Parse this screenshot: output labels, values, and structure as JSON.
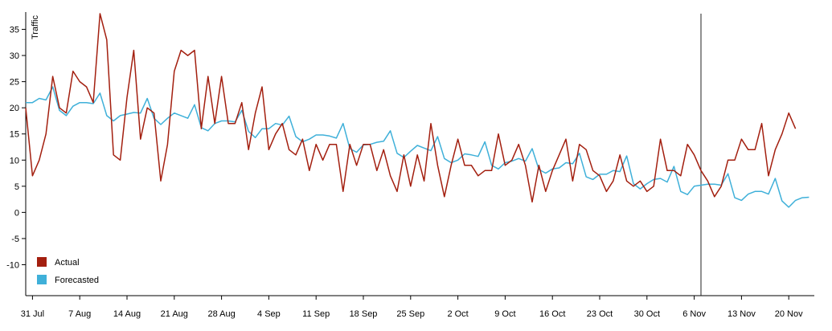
{
  "chart_data": {
    "type": "line",
    "ylabel": "Traffic",
    "ylim": [
      -13,
      38
    ],
    "yticks": [
      -10,
      -5,
      0,
      5,
      10,
      15,
      20,
      25,
      30,
      35
    ],
    "x_start": "2019-07-30",
    "xticks": [
      {
        "label": "31 Jul",
        "date": "2019-07-31"
      },
      {
        "label": "7 Aug",
        "date": "2019-08-07"
      },
      {
        "label": "14 Aug",
        "date": "2019-08-14"
      },
      {
        "label": "21 Aug",
        "date": "2019-08-21"
      },
      {
        "label": "28 Aug",
        "date": "2019-08-28"
      },
      {
        "label": "4 Sep",
        "date": "2019-09-04"
      },
      {
        "label": "11 Sep",
        "date": "2019-09-11"
      },
      {
        "label": "18 Sep",
        "date": "2019-09-18"
      },
      {
        "label": "25 Sep",
        "date": "2019-09-25"
      },
      {
        "label": "2 Oct",
        "date": "2019-10-02"
      },
      {
        "label": "9 Oct",
        "date": "2019-10-09"
      },
      {
        "label": "16 Oct",
        "date": "2019-10-16"
      },
      {
        "label": "23 Oct",
        "date": "2019-10-23"
      },
      {
        "label": "30 Oct",
        "date": "2019-10-30"
      },
      {
        "label": "6 Nov",
        "date": "2019-11-06"
      },
      {
        "label": "13 Nov",
        "date": "2019-11-13"
      },
      {
        "label": "20 Nov",
        "date": "2019-11-20"
      }
    ],
    "marker_date": "2019-11-07",
    "legend_position": "bottom-left",
    "grid": false,
    "series": [
      {
        "name": "Actual",
        "color": "#a31f0f",
        "values": [
          20,
          7,
          10,
          15,
          26,
          20,
          19,
          27,
          25,
          24,
          21,
          38,
          33,
          11,
          10,
          22,
          31,
          14,
          20,
          19,
          6,
          13,
          27,
          31,
          30,
          31,
          16,
          26,
          17,
          26,
          17,
          17,
          21,
          12,
          19,
          24,
          12,
          15,
          17,
          12,
          11,
          14,
          8,
          13,
          10,
          13,
          13,
          4,
          13,
          9,
          13,
          13,
          8,
          12,
          7,
          4,
          11,
          5,
          11,
          6,
          17,
          9,
          3,
          9,
          14,
          9,
          9,
          7,
          8,
          8,
          15,
          9,
          10,
          13,
          9,
          2,
          9,
          4,
          8,
          11,
          14,
          6,
          13,
          12,
          8,
          7,
          4,
          6,
          11,
          6,
          5,
          6,
          4,
          5,
          14,
          8,
          8,
          7,
          13,
          11,
          8,
          6,
          3,
          5,
          10,
          10,
          14,
          12,
          12,
          17,
          7,
          12,
          15,
          19,
          16
        ]
      },
      {
        "name": "Forecasted",
        "color": "#3fb0d9",
        "values": [
          21,
          21,
          21.8,
          21.5,
          24,
          19.5,
          18.5,
          20.3,
          21,
          21,
          20.8,
          22.8,
          18.5,
          17.5,
          18.5,
          18.8,
          19.1,
          19,
          21.8,
          18,
          16.8,
          18,
          19,
          18.5,
          18,
          20.6,
          16.2,
          15.6,
          17,
          17.5,
          17.5,
          17.3,
          19.5,
          15.5,
          14.3,
          16,
          16,
          17,
          16.7,
          18.4,
          14.5,
          13.5,
          14,
          14.8,
          14.8,
          14.6,
          14.2,
          17,
          12.2,
          11.5,
          12.9,
          13,
          13.4,
          13.6,
          15.6,
          11.3,
          10.5,
          11.7,
          12.8,
          12.3,
          11.8,
          14.5,
          10.3,
          9.5,
          10,
          11.2,
          11,
          10.7,
          13.5,
          9,
          8.3,
          9.5,
          9.8,
          10.3,
          9.8,
          12.2,
          8.2,
          7.5,
          8.3,
          8.5,
          9.5,
          9.3,
          11.3,
          6.8,
          6.3,
          7.3,
          7.3,
          8,
          7.8,
          10.8,
          5.5,
          4.5,
          5.5,
          6.3,
          6.5,
          5.8,
          8.8,
          4,
          3.4,
          5,
          5.2,
          5.4,
          5.4,
          5.2,
          7.4,
          2.8,
          2.3,
          3.5,
          4,
          4,
          3.5,
          6.5,
          2.2,
          1,
          2.3,
          2.8,
          2.9
        ]
      }
    ]
  }
}
